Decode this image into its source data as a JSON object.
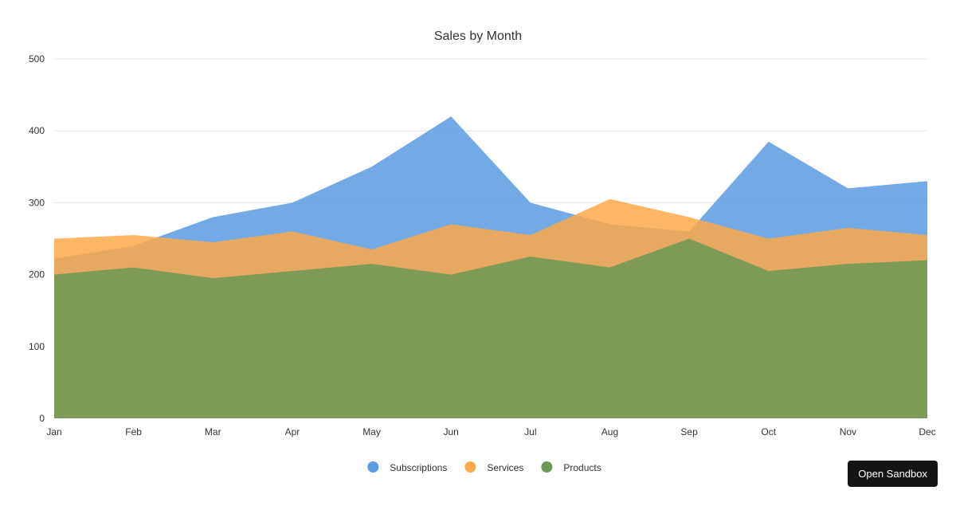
{
  "chart_data": {
    "type": "area",
    "title": "Sales by Month",
    "xlabel": "",
    "ylabel": "",
    "ylim": [
      0,
      500
    ],
    "yticks": [
      0,
      100,
      200,
      300,
      400,
      500
    ],
    "grid": true,
    "legend_position": "bottom-center",
    "categories": [
      "Jan",
      "Feb",
      "Mar",
      "Apr",
      "May",
      "Jun",
      "Jul",
      "Aug",
      "Sep",
      "Oct",
      "Nov",
      "Dec"
    ],
    "series": [
      {
        "name": "Subscriptions",
        "color": "#5b9be0",
        "values": [
          222,
          240,
          280,
          300,
          350,
          420,
          300,
          270,
          260,
          385,
          320,
          330
        ]
      },
      {
        "name": "Services",
        "color": "#fba94b",
        "values": [
          250,
          255,
          245,
          260,
          235,
          270,
          255,
          305,
          280,
          250,
          265,
          255
        ]
      },
      {
        "name": "Products",
        "color": "#6a9856",
        "values": [
          200,
          210,
          195,
          205,
          215,
          200,
          225,
          210,
          250,
          205,
          215,
          220
        ]
      }
    ]
  },
  "toolbar": {
    "sandbox_label": "Open Sandbox"
  }
}
